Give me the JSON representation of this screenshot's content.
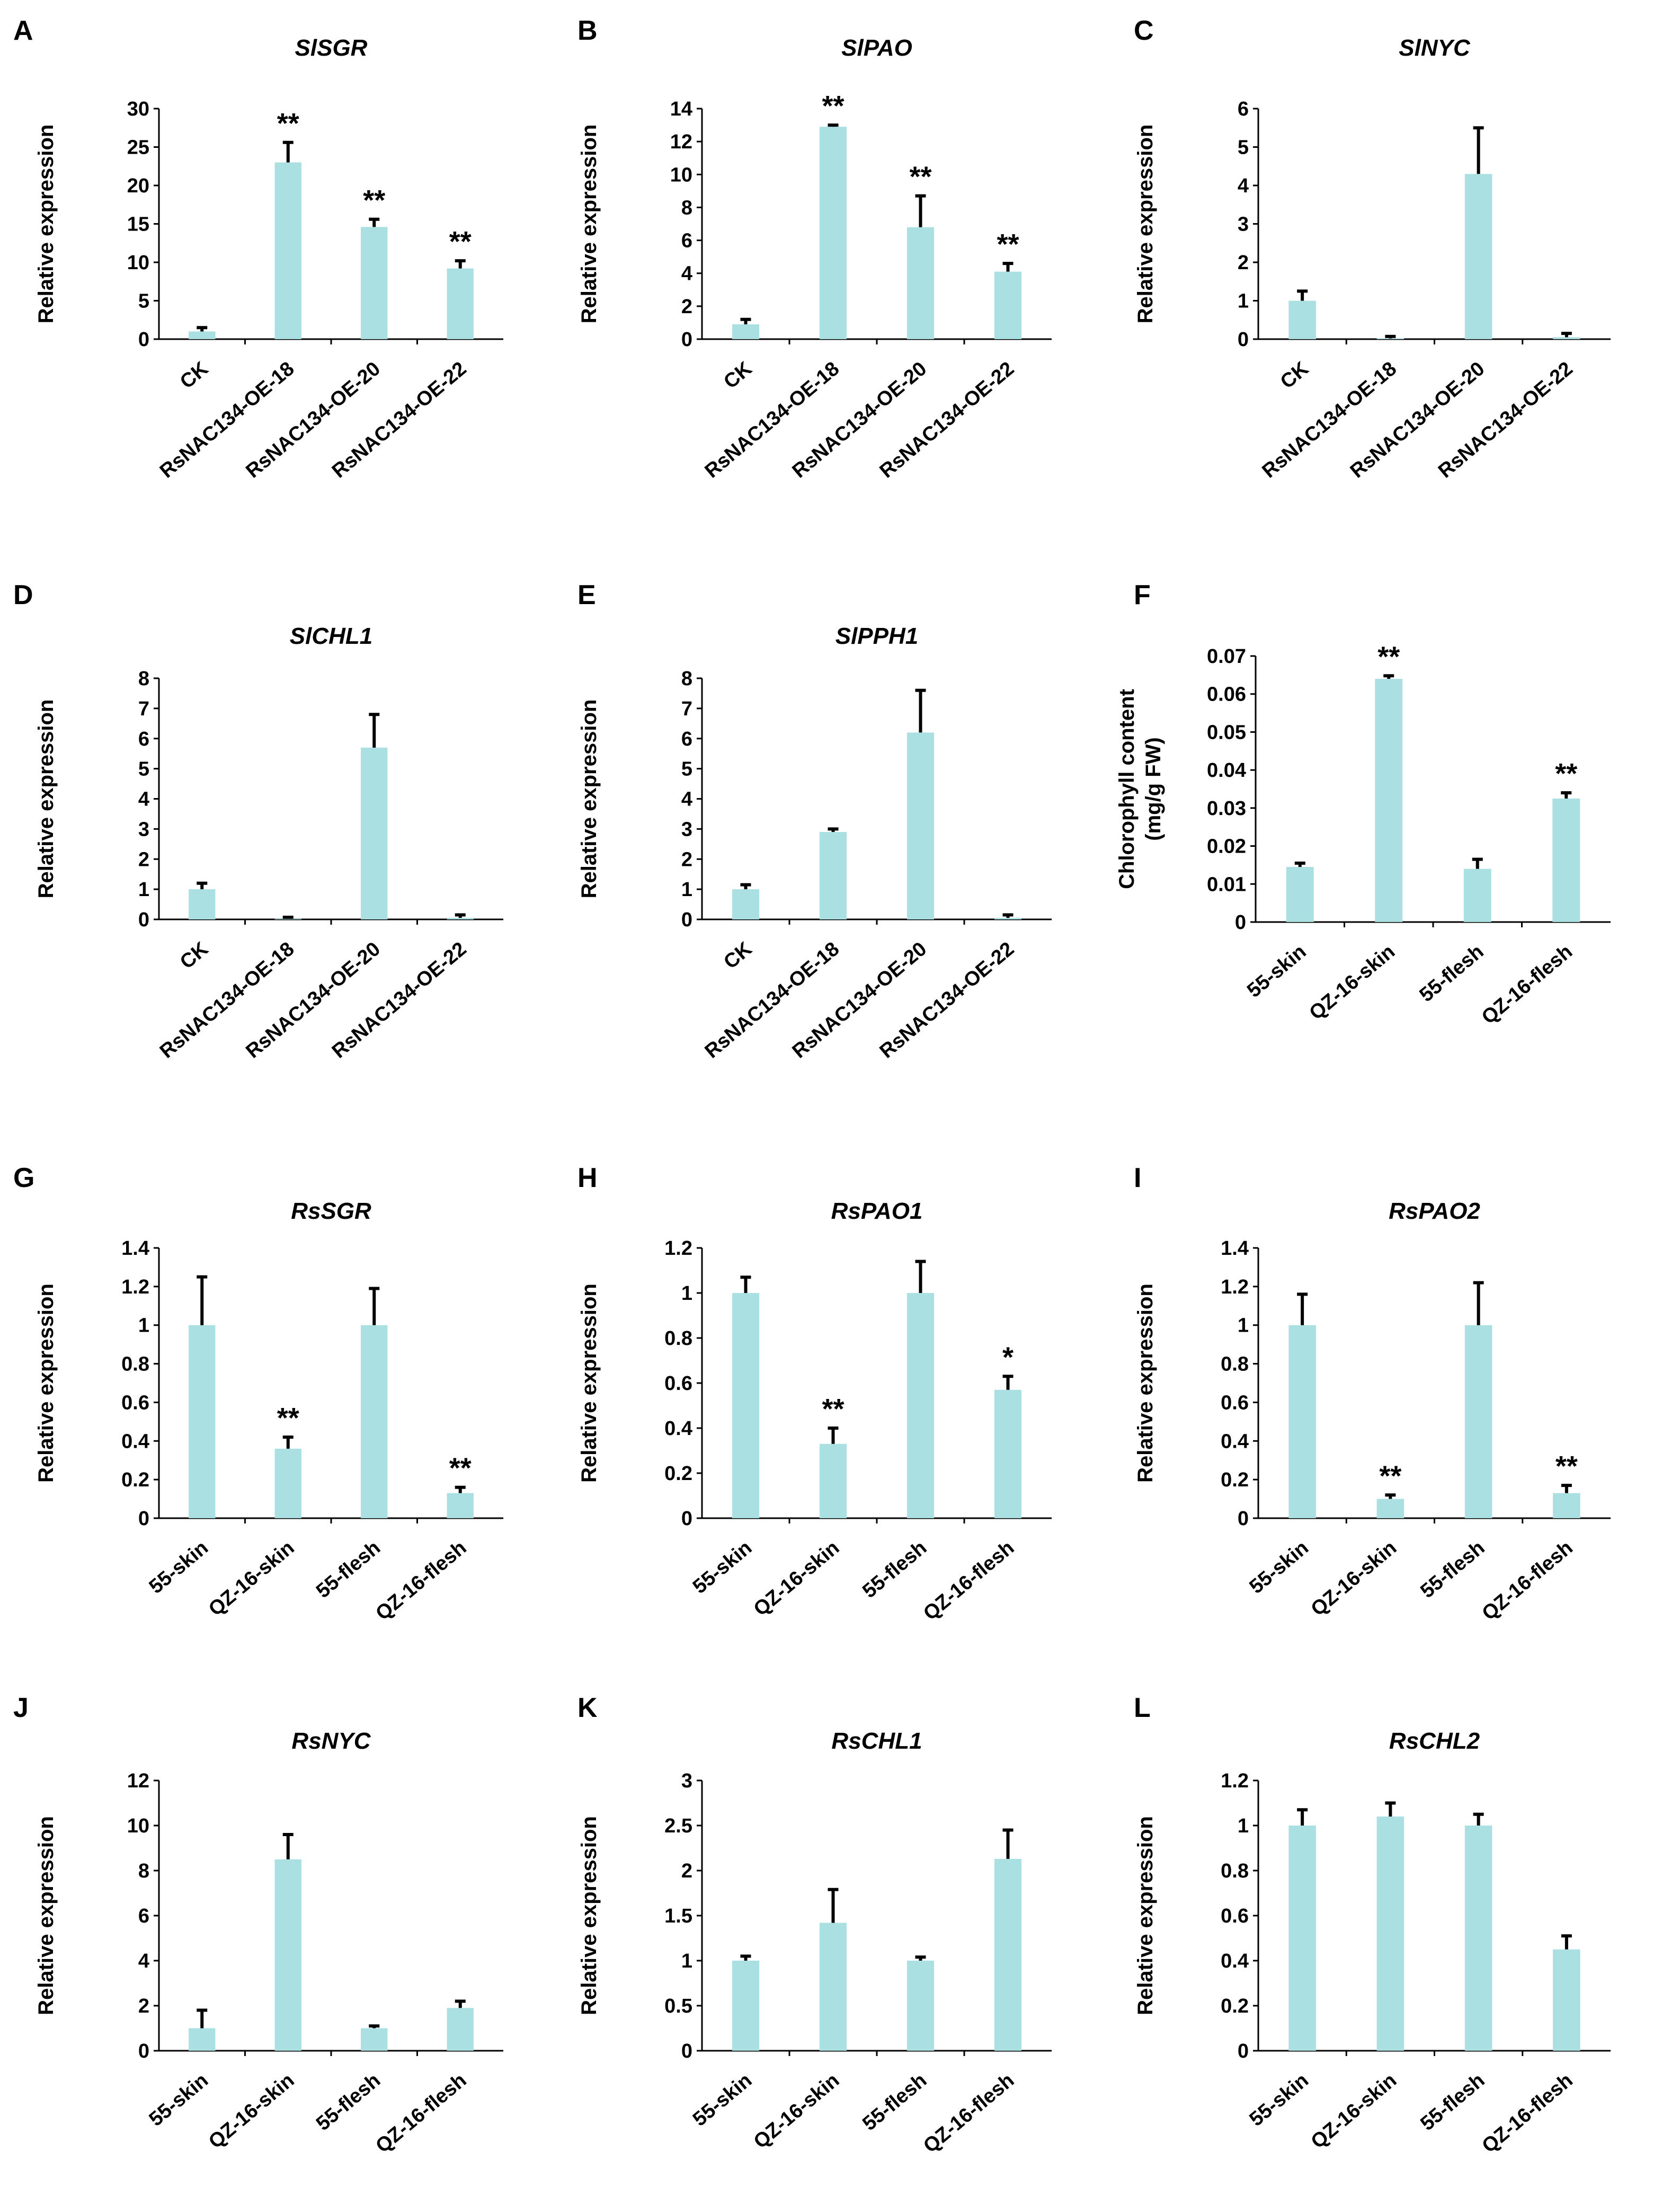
{
  "colors": {
    "bar": "#abe0e2",
    "axis": "#000000",
    "error_bar": "#000000"
  },
  "chart_data": [
    {
      "id": "A",
      "panel_label": "A",
      "type": "bar",
      "title": "SlSGR",
      "ylabel": "Relative expression",
      "ylim": [
        0,
        30
      ],
      "yticks": [
        0,
        5,
        10,
        15,
        20,
        25,
        30
      ],
      "categories": [
        "CK",
        "RsNAC134-OE-18",
        "RsNAC134-OE-20",
        "RsNAC134-OE-22"
      ],
      "values": [
        1,
        23,
        14.6,
        9.2
      ],
      "error": [
        0.5,
        2.6,
        1.0,
        1.0
      ],
      "significance": [
        "",
        "**",
        "**",
        "**"
      ]
    },
    {
      "id": "B",
      "panel_label": "B",
      "type": "bar",
      "title": "SlPAO",
      "ylabel": "Relative expression",
      "ylim": [
        0,
        14
      ],
      "yticks": [
        0,
        2,
        4,
        6,
        8,
        10,
        12,
        14
      ],
      "categories": [
        "CK",
        "RsNAC134-OE-18",
        "RsNAC134-OE-20",
        "RsNAC134-OE-22"
      ],
      "values": [
        0.9,
        12.9,
        6.8,
        4.1
      ],
      "error": [
        0.3,
        0.1,
        1.9,
        0.5
      ],
      "significance": [
        "",
        "**",
        "**",
        "**"
      ]
    },
    {
      "id": "C",
      "panel_label": "C",
      "type": "bar",
      "title": "SlNYC",
      "ylabel": "Relative expression",
      "ylim": [
        0,
        6
      ],
      "yticks": [
        0,
        1,
        2,
        3,
        4,
        5,
        6
      ],
      "categories": [
        "CK",
        "RsNAC134-OE-18",
        "RsNAC134-OE-20",
        "RsNAC134-OE-22"
      ],
      "values": [
        1.0,
        0.02,
        4.3,
        0.05
      ],
      "error": [
        0.25,
        0.05,
        1.2,
        0.1
      ],
      "significance": [
        "",
        "",
        "",
        ""
      ]
    },
    {
      "id": "D",
      "panel_label": "D",
      "type": "bar",
      "title": "SlCHL1",
      "ylabel": "Relative expression",
      "ylim": [
        0,
        8
      ],
      "yticks": [
        0,
        1,
        2,
        3,
        4,
        5,
        6,
        7,
        8
      ],
      "categories": [
        "CK",
        "RsNAC134-OE-18",
        "RsNAC134-OE-20",
        "RsNAC134-OE-22"
      ],
      "values": [
        1.0,
        0.02,
        5.7,
        0.05
      ],
      "error": [
        0.2,
        0.05,
        1.1,
        0.1
      ],
      "significance": [
        "",
        "",
        "",
        ""
      ]
    },
    {
      "id": "E",
      "panel_label": "E",
      "type": "bar",
      "title": "SlPPH1",
      "ylabel": "Relative expression",
      "ylim": [
        0,
        8
      ],
      "yticks": [
        0,
        1,
        2,
        3,
        4,
        5,
        6,
        7,
        8
      ],
      "categories": [
        "CK",
        "RsNAC134-OE-18",
        "RsNAC134-OE-20",
        "RsNAC134-OE-22"
      ],
      "values": [
        1.0,
        2.9,
        6.2,
        0.05
      ],
      "error": [
        0.15,
        0.1,
        1.4,
        0.1
      ],
      "significance": [
        "",
        "",
        "",
        ""
      ]
    },
    {
      "id": "F",
      "panel_label": "F",
      "type": "bar",
      "title": "",
      "ylabel": "Chlorophyll content",
      "ylabel2": "(mg/g FW)",
      "ylim": [
        0,
        0.07
      ],
      "yticks": [
        0,
        0.01,
        0.02,
        0.03,
        0.04,
        0.05,
        0.06,
        0.07
      ],
      "categories": [
        "55-skin",
        "QZ-16-skin",
        "55-flesh",
        "QZ-16-flesh"
      ],
      "values": [
        0.0145,
        0.064,
        0.014,
        0.0325
      ],
      "error": [
        0.001,
        0.0008,
        0.0025,
        0.0015
      ],
      "significance": [
        "",
        "**",
        "",
        "**"
      ]
    },
    {
      "id": "G",
      "panel_label": "G",
      "type": "bar",
      "title": "RsSGR",
      "ylabel": "Relative expression",
      "ylim": [
        0,
        1.4
      ],
      "yticks": [
        0,
        0.2,
        0.4,
        0.6,
        0.8,
        1,
        1.2,
        1.4
      ],
      "categories": [
        "55-skin",
        "QZ-16-skin",
        "55-flesh",
        "QZ-16-flesh"
      ],
      "values": [
        1.0,
        0.36,
        1.0,
        0.13
      ],
      "error": [
        0.25,
        0.06,
        0.19,
        0.03
      ],
      "significance": [
        "",
        "**",
        "",
        "**"
      ]
    },
    {
      "id": "H",
      "panel_label": "H",
      "type": "bar",
      "title": "RsPAO1",
      "ylabel": "Relative expression",
      "ylim": [
        0,
        1.2
      ],
      "yticks": [
        0,
        0.2,
        0.4,
        0.6,
        0.8,
        1,
        1.2
      ],
      "categories": [
        "55-skin",
        "QZ-16-skin",
        "55-flesh",
        "QZ-16-flesh"
      ],
      "values": [
        1.0,
        0.33,
        1.0,
        0.57
      ],
      "error": [
        0.07,
        0.07,
        0.14,
        0.06
      ],
      "significance": [
        "",
        "**",
        "",
        "*"
      ]
    },
    {
      "id": "I",
      "panel_label": "I",
      "type": "bar",
      "title": "RsPAO2",
      "ylabel": "Relative expression",
      "ylim": [
        0,
        1.4
      ],
      "yticks": [
        0,
        0.2,
        0.4,
        0.6,
        0.8,
        1,
        1.2,
        1.4
      ],
      "categories": [
        "55-skin",
        "QZ-16-skin",
        "55-flesh",
        "QZ-16-flesh"
      ],
      "values": [
        1.0,
        0.1,
        1.0,
        0.13
      ],
      "error": [
        0.16,
        0.02,
        0.22,
        0.04
      ],
      "significance": [
        "",
        "**",
        "",
        "**"
      ]
    },
    {
      "id": "J",
      "panel_label": "J",
      "type": "bar",
      "title": "RsNYC",
      "ylabel": "Relative expression",
      "ylim": [
        0,
        12
      ],
      "yticks": [
        0,
        2,
        4,
        6,
        8,
        10,
        12
      ],
      "categories": [
        "55-skin",
        "QZ-16-skin",
        "55-flesh",
        "QZ-16-flesh"
      ],
      "values": [
        1.0,
        8.5,
        1.0,
        1.9
      ],
      "error": [
        0.8,
        1.1,
        0.1,
        0.3
      ],
      "significance": [
        "",
        "",
        "",
        ""
      ]
    },
    {
      "id": "K",
      "panel_label": "K",
      "type": "bar",
      "title": "RsCHL1",
      "ylabel": "Relative expression",
      "ylim": [
        0,
        3
      ],
      "yticks": [
        0,
        0.5,
        1,
        1.5,
        2,
        2.5,
        3
      ],
      "categories": [
        "55-skin",
        "QZ-16-skin",
        "55-flesh",
        "QZ-16-flesh"
      ],
      "values": [
        1.0,
        1.42,
        1.0,
        2.13
      ],
      "error": [
        0.05,
        0.37,
        0.04,
        0.32
      ],
      "significance": [
        "",
        "",
        "",
        ""
      ]
    },
    {
      "id": "L",
      "panel_label": "L",
      "type": "bar",
      "title": "RsCHL2",
      "ylabel": "Relative expression",
      "ylim": [
        0,
        1.2
      ],
      "yticks": [
        0,
        0.2,
        0.4,
        0.6,
        0.8,
        1,
        1.2
      ],
      "categories": [
        "55-skin",
        "QZ-16-skin",
        "55-flesh",
        "QZ-16-flesh"
      ],
      "values": [
        1.0,
        1.04,
        1.0,
        0.45
      ],
      "error": [
        0.07,
        0.06,
        0.05,
        0.06
      ],
      "significance": [
        "",
        "",
        "",
        ""
      ]
    }
  ]
}
